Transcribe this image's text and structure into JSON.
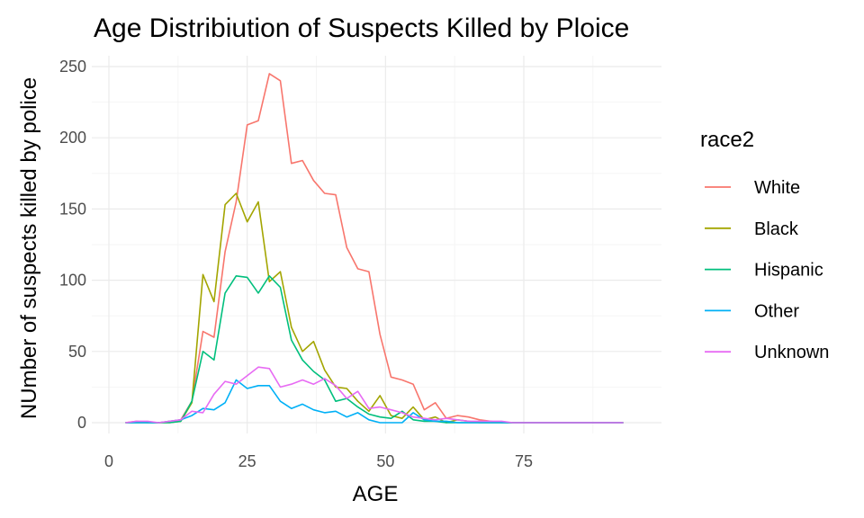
{
  "chart_data": {
    "type": "line",
    "title": "Age Distribiution of Suspects Killed by Ploice",
    "xlabel": "AGE",
    "ylabel": "NUmber of suspects killed by police",
    "xlim": [
      0,
      95
    ],
    "ylim": [
      0,
      255
    ],
    "x_ticks": [
      0,
      25,
      50,
      75
    ],
    "y_ticks": [
      0,
      50,
      100,
      150,
      200,
      250
    ],
    "x_tick_labels": [
      "0",
      "25",
      "50",
      "75"
    ],
    "y_tick_labels": [
      "0",
      "50",
      "100",
      "150",
      "200",
      "250"
    ],
    "grid": true,
    "legend": {
      "title": "race2",
      "position": "right"
    },
    "x": [
      3,
      5,
      7,
      9,
      11,
      13,
      15,
      17,
      19,
      21,
      23,
      25,
      27,
      29,
      31,
      33,
      35,
      37,
      39,
      41,
      43,
      45,
      47,
      49,
      51,
      53,
      55,
      57,
      59,
      61,
      63,
      65,
      67,
      69,
      71,
      73,
      75,
      77,
      79,
      81,
      83,
      85,
      87,
      89,
      91,
      93
    ],
    "series": [
      {
        "name": "White",
        "color": "#F8766D",
        "values": [
          0,
          1,
          0,
          0,
          1,
          2,
          15,
          64,
          60,
          120,
          155,
          209,
          212,
          245,
          240,
          182,
          184,
          170,
          161,
          160,
          123,
          108,
          106,
          62,
          32,
          30,
          27,
          9,
          14,
          3,
          5,
          4,
          2,
          1,
          0,
          0,
          0,
          0,
          0,
          0,
          0,
          0,
          0,
          0,
          0,
          0
        ]
      },
      {
        "name": "Black",
        "color": "#A3A500",
        "values": [
          0,
          0,
          0,
          0,
          0,
          1,
          14,
          104,
          85,
          153,
          161,
          141,
          155,
          99,
          106,
          67,
          50,
          57,
          37,
          25,
          24,
          15,
          8,
          19,
          5,
          3,
          11,
          2,
          4,
          0,
          2,
          1,
          0,
          0,
          0,
          0,
          0,
          0,
          0,
          0,
          0,
          0,
          0,
          0,
          0,
          0
        ]
      },
      {
        "name": "Hispanic",
        "color": "#00BF7D",
        "values": [
          0,
          0,
          0,
          0,
          0,
          1,
          15,
          50,
          44,
          91,
          103,
          102,
          91,
          103,
          95,
          58,
          44,
          36,
          30,
          15,
          17,
          11,
          6,
          4,
          3,
          8,
          2,
          1,
          1,
          0,
          0,
          0,
          0,
          0,
          0,
          0,
          0,
          0,
          0,
          0,
          0,
          0,
          0,
          0,
          0,
          0
        ]
      },
      {
        "name": "Other",
        "color": "#00B0F6",
        "values": [
          0,
          0,
          0,
          0,
          1,
          2,
          5,
          10,
          9,
          14,
          30,
          24,
          26,
          26,
          15,
          10,
          13,
          9,
          7,
          8,
          4,
          7,
          2,
          0,
          0,
          0,
          7,
          2,
          1,
          1,
          0,
          0,
          0,
          0,
          0,
          0,
          0,
          0,
          0,
          0,
          0,
          0,
          0,
          0,
          0,
          0
        ]
      },
      {
        "name": "Unknown",
        "color": "#E76BF3",
        "values": [
          0,
          1,
          1,
          0,
          1,
          2,
          8,
          7,
          20,
          29,
          27,
          33,
          39,
          38,
          25,
          27,
          30,
          27,
          31,
          26,
          17,
          22,
          10,
          11,
          9,
          7,
          4,
          3,
          2,
          3,
          2,
          1,
          1,
          1,
          1,
          0,
          0,
          0,
          0,
          0,
          0,
          0,
          0,
          0,
          0,
          0
        ]
      }
    ]
  }
}
